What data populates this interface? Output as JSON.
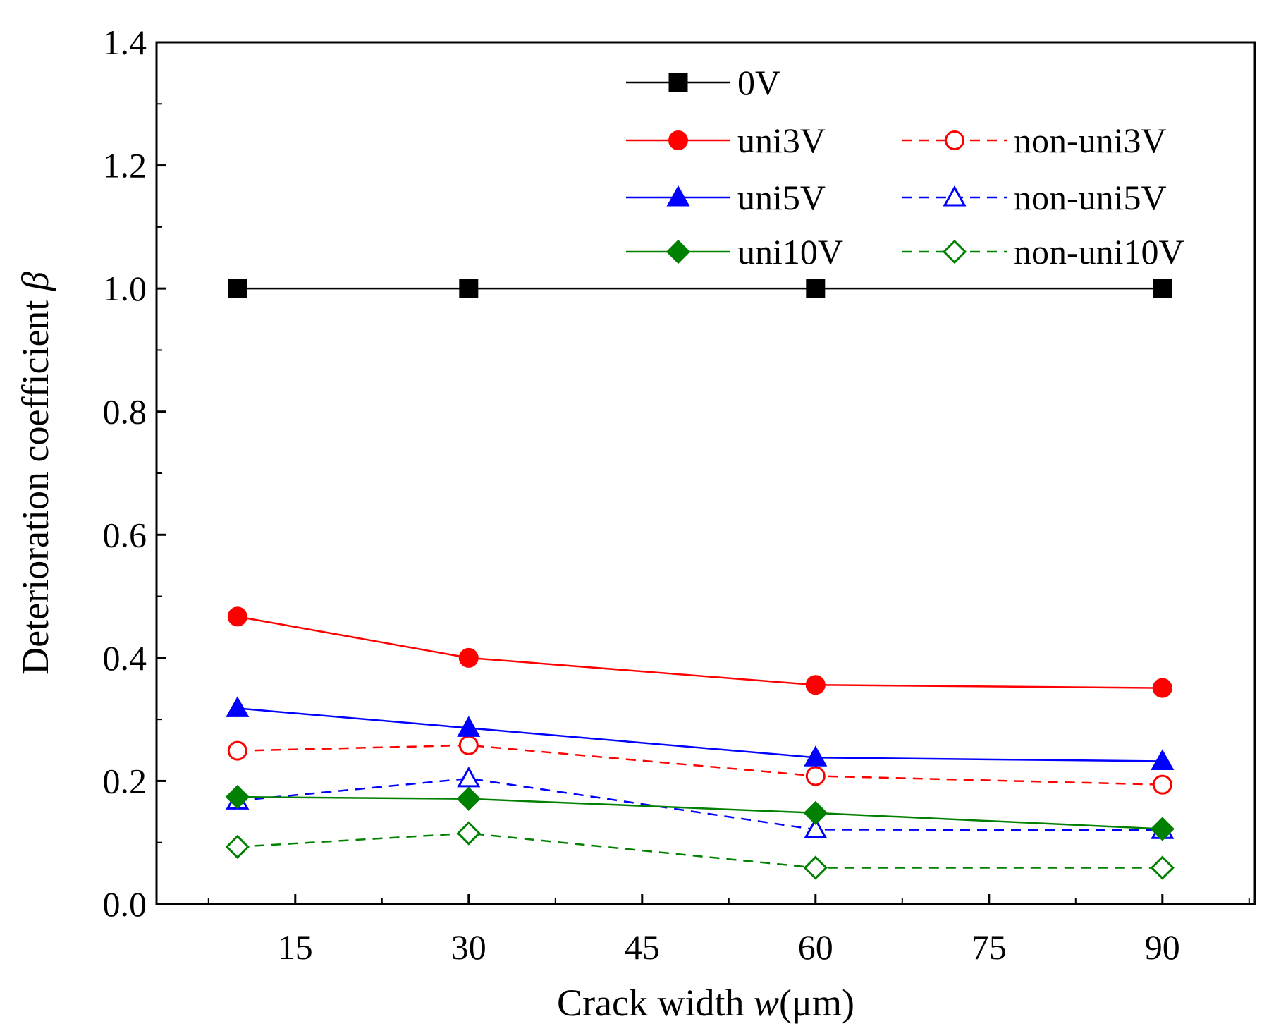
{
  "chart_data": {
    "type": "line",
    "x": [
      10,
      30,
      60,
      90
    ],
    "xlim": [
      3,
      98
    ],
    "ylim": [
      0.0,
      1.4
    ],
    "xticks": [
      15,
      30,
      45,
      60,
      75,
      90
    ],
    "xtick_labels": [
      "15",
      "30",
      "45",
      "60",
      "75",
      "90"
    ],
    "yticks": [
      0.0,
      0.2,
      0.4,
      0.6,
      0.8,
      1.0,
      1.2,
      1.4
    ],
    "ytick_labels": [
      "0.0",
      "0.2",
      "0.4",
      "0.6",
      "0.8",
      "1.0",
      "1.2",
      "1.4"
    ],
    "xlabel": {
      "prefix": "Crack width ",
      "italic": "w",
      "suffix": "(μm)"
    },
    "ylabel": {
      "prefix": "Deterioration coefficient ",
      "italic": "β"
    },
    "grid": false,
    "legend_position": "top-right",
    "series": [
      {
        "name": "0V",
        "color": "#000000",
        "marker": "square",
        "filled": true,
        "dashed": false,
        "values": [
          1.0,
          1.0,
          1.0,
          1.0
        ]
      },
      {
        "name": "uni3V",
        "color": "#ff0000",
        "marker": "circle",
        "filled": true,
        "dashed": false,
        "values": [
          0.467,
          0.4,
          0.356,
          0.351
        ]
      },
      {
        "name": "non-uni3V",
        "color": "#ff0000",
        "marker": "circle",
        "filled": false,
        "dashed": true,
        "values": [
          0.249,
          0.258,
          0.208,
          0.194
        ]
      },
      {
        "name": "uni5V",
        "color": "#0000ff",
        "marker": "triangle",
        "filled": true,
        "dashed": false,
        "values": [
          0.318,
          0.286,
          0.238,
          0.232
        ]
      },
      {
        "name": "non-uni5V",
        "color": "#0000ff",
        "marker": "triangle",
        "filled": false,
        "dashed": true,
        "values": [
          0.168,
          0.204,
          0.121,
          0.12
        ]
      },
      {
        "name": "uni10V",
        "color": "#008000",
        "marker": "diamond",
        "filled": true,
        "dashed": false,
        "values": [
          0.174,
          0.171,
          0.148,
          0.122
        ]
      },
      {
        "name": "non-uni10V",
        "color": "#008000",
        "marker": "diamond",
        "filled": false,
        "dashed": true,
        "values": [
          0.093,
          0.115,
          0.059,
          0.059
        ]
      }
    ]
  }
}
